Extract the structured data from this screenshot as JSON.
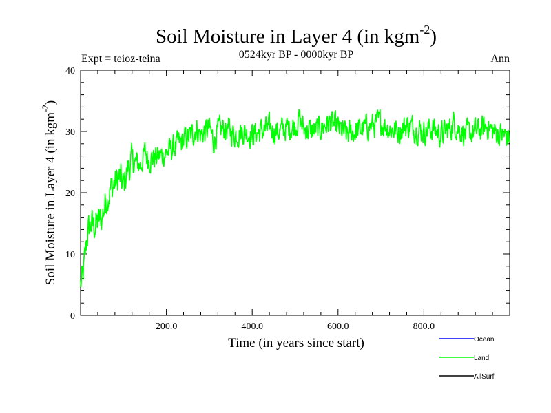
{
  "chart_data": {
    "type": "line",
    "title_main": "Soil Moisture in Layer 4 (in kgm",
    "title_sup": "-2",
    "title_close": ")",
    "subtitle": "0524kyr BP - 0000kyr BP",
    "experiment": "Expt = teioz-teina",
    "season": "Ann",
    "xlabel": "Time (in years since start)",
    "ylabel_main": "Soil Moisture in Layer 4 (in kgm",
    "ylabel_sup": "-2",
    "ylabel_close": ")",
    "xlim": [
      0,
      1000
    ],
    "ylim": [
      0,
      40
    ],
    "x_ticks": [
      200,
      400,
      600,
      800
    ],
    "x_tick_labels": [
      "200.0",
      "400.0",
      "600.0",
      "800.0"
    ],
    "y_ticks": [
      0,
      10,
      20,
      30,
      40
    ],
    "y_tick_labels": [
      "0",
      "10",
      "20",
      "30",
      "40"
    ],
    "legend": [
      {
        "label": "Ocean",
        "color": "#0000ff"
      },
      {
        "label": "Land",
        "color": "#00ff00"
      },
      {
        "label": "AllSurf",
        "color": "#000000"
      }
    ],
    "series": [
      {
        "name": "Land",
        "color": "#00ff00",
        "x": [
          0,
          5,
          10,
          15,
          20,
          25,
          30,
          40,
          50,
          60,
          70,
          80,
          90,
          100,
          110,
          120,
          140,
          150,
          160,
          180,
          200,
          220,
          240,
          260,
          270,
          280,
          300,
          310,
          320,
          340,
          360,
          380,
          400,
          420,
          440,
          460,
          480,
          500,
          510,
          520,
          540,
          560,
          580,
          600,
          620,
          640,
          660,
          680,
          700,
          720,
          740,
          760,
          780,
          800,
          820,
          840,
          860,
          870,
          880,
          900,
          920,
          940,
          950,
          960,
          980,
          1000
        ],
        "values": [
          5,
          6,
          9,
          13,
          14,
          15,
          14.5,
          15,
          16,
          19,
          20.5,
          21.5,
          22.5,
          21,
          24,
          25,
          24.5,
          26.5,
          25.5,
          25.8,
          26.5,
          27.5,
          28.5,
          29.5,
          30.5,
          29.5,
          30.5,
          28.5,
          30,
          30.5,
          29.5,
          30,
          29.5,
          30,
          30.5,
          30,
          30.5,
          31,
          32,
          30.5,
          30,
          30.5,
          31.5,
          30.5,
          29.5,
          30,
          30.5,
          31,
          31.5,
          30.5,
          30,
          31,
          30.5,
          30,
          30.5,
          29.5,
          30.5,
          31.5,
          30.5,
          29.5,
          30,
          30.5,
          31,
          30,
          29.5,
          29
        ]
      },
      {
        "name": "Ocean",
        "color": "#0000ff",
        "x": [],
        "values": []
      },
      {
        "name": "AllSurf",
        "color": "#000000",
        "x": [],
        "values": []
      }
    ]
  }
}
